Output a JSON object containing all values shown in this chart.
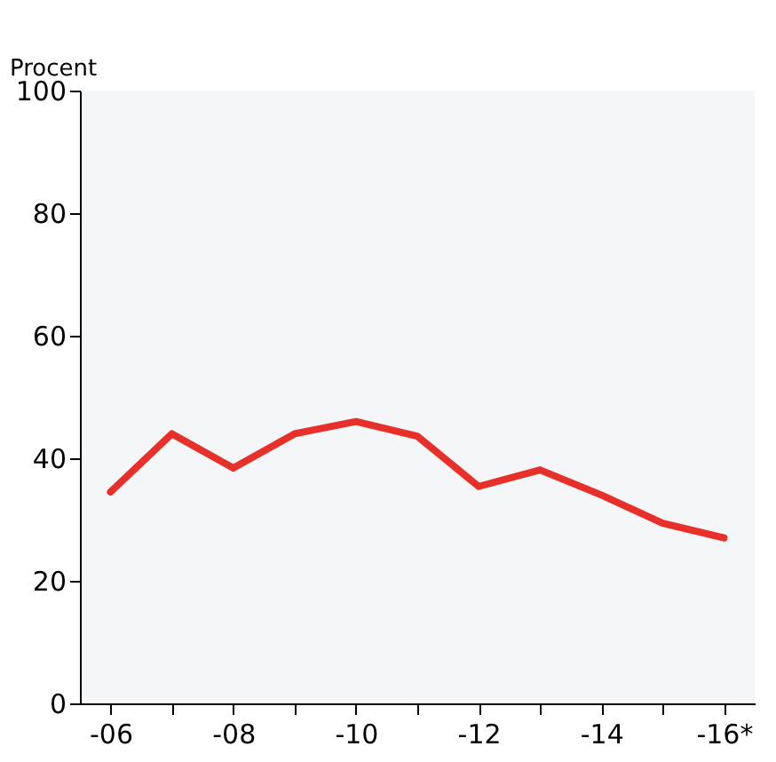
{
  "chart_data": {
    "type": "line",
    "ylabel": "Procent",
    "categories": [
      "-06",
      null,
      "-08",
      null,
      "-10",
      null,
      "-12",
      null,
      "-14",
      null,
      "-16*"
    ],
    "series": [
      {
        "color": "#e8302a",
        "values": [
          34.5,
          44,
          38.4,
          44,
          46,
          43.6,
          35.4,
          38.1,
          34,
          29.4,
          27
        ]
      }
    ],
    "ylim": [
      0,
      100
    ],
    "yticks": [
      0,
      20,
      40,
      60,
      80,
      100
    ],
    "grid": false,
    "legend": false,
    "marker": "none",
    "line_style": "solid"
  }
}
